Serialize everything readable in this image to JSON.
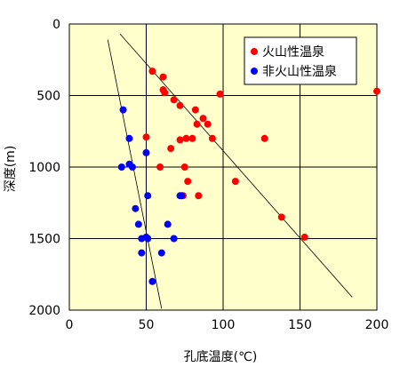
{
  "chart_data": {
    "type": "scatter",
    "title": "",
    "xlabel": "孔底温度(℃)",
    "ylabel": "深度(m)",
    "xlim": [
      0,
      200
    ],
    "ylim": [
      0,
      2000
    ],
    "y_inverted": true,
    "x_ticks": [
      0,
      50,
      100,
      150,
      200
    ],
    "y_ticks": [
      0,
      500,
      1000,
      1500,
      2000
    ],
    "x_tick_labels": [
      "0",
      "50",
      "100",
      "150",
      "200"
    ],
    "y_tick_labels": [
      "0",
      "500",
      "1000",
      "1500",
      "2000"
    ],
    "grid": true,
    "plot_background": "#ffffcc",
    "legend_position": "top-right",
    "series": [
      {
        "name": "火山性温泉",
        "color": "#ff0000",
        "points": [
          [
            54,
            330
          ],
          [
            61,
            370
          ],
          [
            61,
            460
          ],
          [
            62,
            480
          ],
          [
            98,
            490
          ],
          [
            200,
            470
          ],
          [
            68,
            530
          ],
          [
            72,
            570
          ],
          [
            82,
            600
          ],
          [
            87,
            660
          ],
          [
            90,
            700
          ],
          [
            83,
            700
          ],
          [
            80,
            800
          ],
          [
            76,
            800
          ],
          [
            72,
            810
          ],
          [
            93,
            800
          ],
          [
            127,
            800
          ],
          [
            50,
            790
          ],
          [
            66,
            870
          ],
          [
            59,
            1000
          ],
          [
            75,
            1000
          ],
          [
            77,
            1100
          ],
          [
            108,
            1100
          ],
          [
            74,
            1200
          ],
          [
            84,
            1200
          ],
          [
            138,
            1350
          ],
          [
            153,
            1490
          ]
        ]
      },
      {
        "name": "非火山性温泉",
        "color": "#0000ff",
        "points": [
          [
            35,
            600
          ],
          [
            39,
            800
          ],
          [
            50,
            900
          ],
          [
            39,
            980
          ],
          [
            41,
            1000
          ],
          [
            34,
            1000
          ],
          [
            51,
            1200
          ],
          [
            72,
            1200
          ],
          [
            73,
            1200
          ],
          [
            43,
            1290
          ],
          [
            45,
            1400
          ],
          [
            64,
            1400
          ],
          [
            47,
            1500
          ],
          [
            50,
            1490
          ],
          [
            51,
            1500
          ],
          [
            68,
            1500
          ],
          [
            47,
            1600
          ],
          [
            60,
            1600
          ],
          [
            54,
            1800
          ]
        ]
      }
    ],
    "trend_lines": [
      {
        "for": "火山性温泉",
        "from": [
          33,
          70
        ],
        "to": [
          184,
          1910
        ]
      },
      {
        "for": "非火山性温泉",
        "from": [
          25,
          110
        ],
        "to": [
          60,
          1990
        ]
      }
    ]
  }
}
